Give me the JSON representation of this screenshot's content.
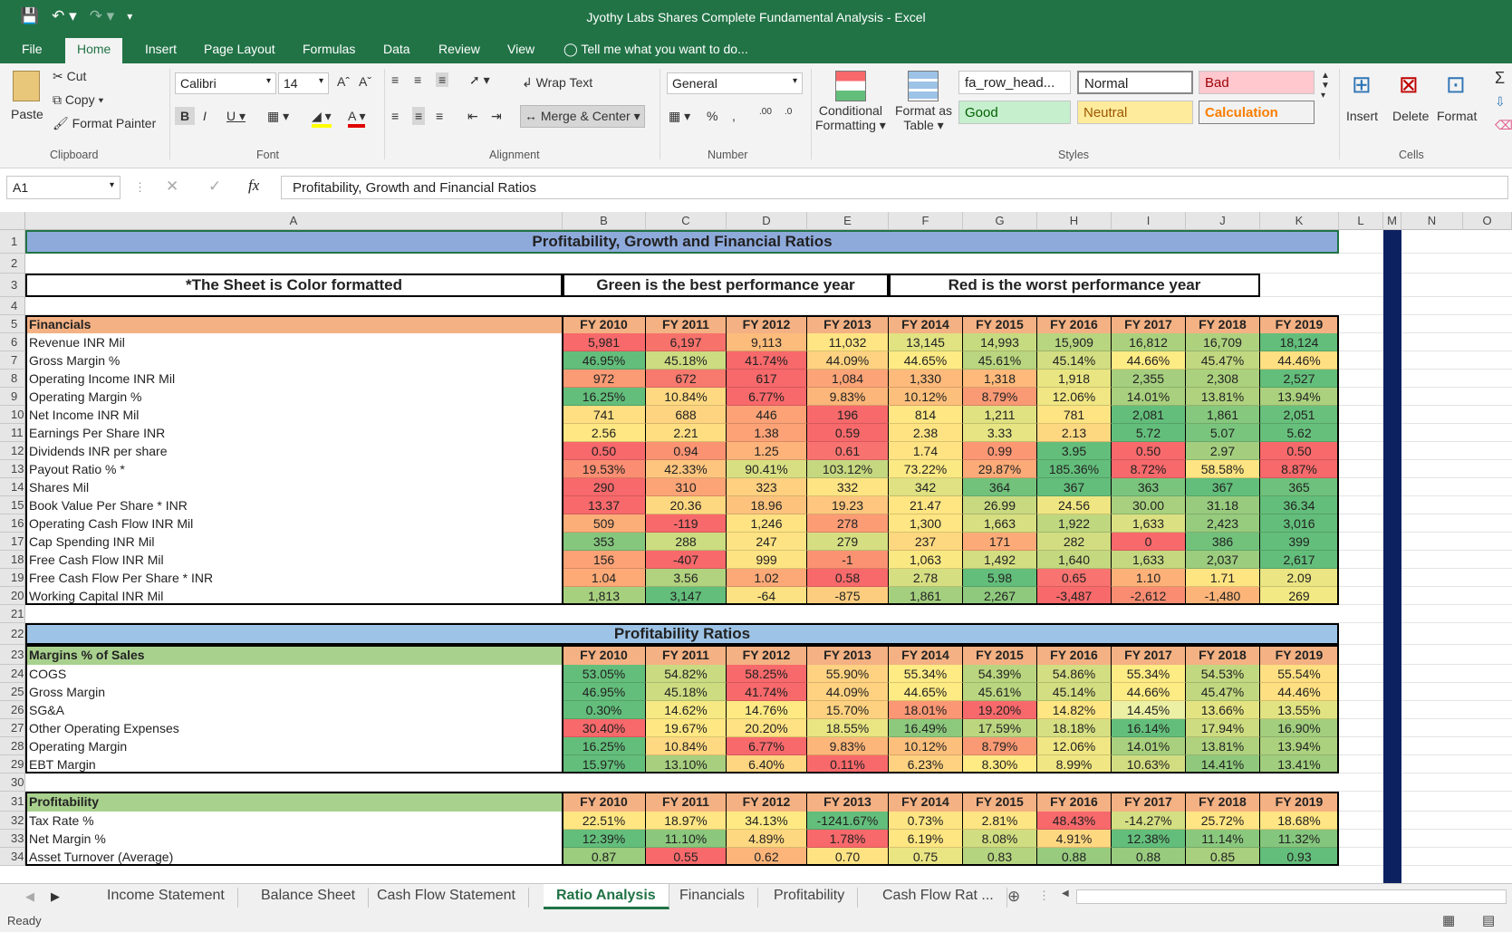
{
  "window": {
    "title": "Jyothy Labs Shares Complete Fundamental Analysis - Excel"
  },
  "menu": {
    "tabs": [
      "File",
      "Home",
      "Insert",
      "Page Layout",
      "Formulas",
      "Data",
      "Review",
      "View"
    ],
    "tell_me": "Tell me what you want to do..."
  },
  "ribbon": {
    "clipboard": {
      "paste": "Paste",
      "cut": "Cut",
      "copy": "Copy",
      "format_painter": "Format Painter",
      "label": "Clipboard"
    },
    "font": {
      "name": "Calibri",
      "size": "14",
      "label": "Font"
    },
    "alignment": {
      "wrap": "Wrap Text",
      "merge": "Merge & Center",
      "label": "Alignment"
    },
    "number": {
      "format": "General",
      "label": "Number"
    },
    "styles": {
      "cond1": "Conditional",
      "cond2": "Formatting",
      "fat1": "Format as",
      "fat2": "Table",
      "s1": "fa_row_head...",
      "s2": "Normal",
      "s3": "Bad",
      "s4": "Good",
      "s5": "Neutral",
      "s6": "Calculation",
      "label": "Styles"
    },
    "cells": {
      "insert": "Insert",
      "delete": "Delete",
      "format": "Format",
      "label": "Cells"
    }
  },
  "formula_bar": {
    "name_box": "A1",
    "formula": "Profitability, Growth and Financial Ratios",
    "fx": "fx"
  },
  "columns": [
    "A",
    "B",
    "C",
    "D",
    "E",
    "F",
    "G",
    "H",
    "I",
    "J",
    "K",
    "L",
    "M",
    "N",
    "O"
  ],
  "sheet": {
    "title": "Profitability, Growth and Financial Ratios",
    "notes": [
      "*The Sheet is Color formatted",
      "Green is the best performance year",
      "Red is the worst performance year"
    ],
    "years": [
      "FY 2010",
      "FY 2011",
      "FY 2012",
      "FY 2013",
      "FY 2014",
      "FY 2015",
      "FY 2016",
      "FY 2017",
      "FY 2018",
      "FY 2019"
    ],
    "financials": {
      "header": "Financials",
      "rows": [
        {
          "label": "Revenue INR Mil",
          "values": [
            "5,981",
            "6,197",
            "9,113",
            "11,032",
            "13,145",
            "14,993",
            "15,909",
            "16,812",
            "16,709",
            "18,124"
          ],
          "colors": [
            "#f8696b",
            "#f8726c",
            "#fcbc7b",
            "#ffe583",
            "#e1e282",
            "#c6da80",
            "#b8d57f",
            "#acd17e",
            "#aed17e",
            "#63be7b"
          ]
        },
        {
          "label": "Gross Margin %",
          "values": [
            "46.95%",
            "45.18%",
            "41.74%",
            "44.09%",
            "44.65%",
            "45.61%",
            "45.14%",
            "44.66%",
            "45.47%",
            "44.46%"
          ],
          "colors": [
            "#63be7b",
            "#cddc81",
            "#f8696b",
            "#fed280",
            "#ffeb84",
            "#b9d57f",
            "#d3de82",
            "#fdeb84",
            "#c2d880",
            "#fee082"
          ]
        },
        {
          "label": "Operating Income INR Mil",
          "values": [
            "972",
            "672",
            "617",
            "1,084",
            "1,330",
            "1,318",
            "1,918",
            "2,355",
            "2,308",
            "2,527"
          ],
          "colors": [
            "#fb9b75",
            "#f87a6e",
            "#f8696b",
            "#fca477",
            "#feba7b",
            "#feb97b",
            "#e9e583",
            "#a5cf7e",
            "#acd17e",
            "#63be7b"
          ]
        },
        {
          "label": "Operating Margin %",
          "values": [
            "16.25%",
            "10.84%",
            "6.77%",
            "9.83%",
            "10.12%",
            "8.79%",
            "12.06%",
            "14.01%",
            "13.81%",
            "13.94%"
          ],
          "colors": [
            "#63be7b",
            "#ffd982",
            "#f8696b",
            "#fdb679",
            "#fdc07c",
            "#fa9a75",
            "#f0e683",
            "#a9d07e",
            "#b0d27f",
            "#acd17e"
          ]
        },
        {
          "label": "Net Income INR Mil",
          "values": [
            "741",
            "688",
            "446",
            "196",
            "814",
            "1,211",
            "781",
            "2,081",
            "1,861",
            "2,051"
          ],
          "colors": [
            "#ffdf82",
            "#fed480",
            "#fca276",
            "#f8696b",
            "#ffe783",
            "#e0e282",
            "#ffe483",
            "#63be7b",
            "#86c87d",
            "#68c07c"
          ]
        },
        {
          "label": "Earnings Per Share INR",
          "values": [
            "2.56",
            "2.21",
            "1.38",
            "0.59",
            "2.38",
            "3.33",
            "2.13",
            "5.72",
            "5.07",
            "5.62"
          ],
          "colors": [
            "#ffe884",
            "#ffde82",
            "#fca276",
            "#f8696b",
            "#ffe383",
            "#e6e483",
            "#fed881",
            "#63be7b",
            "#7ac57d",
            "#67bf7c"
          ]
        },
        {
          "label": "Dividends INR per share",
          "values": [
            "0.50",
            "0.94",
            "1.25",
            "0.61",
            "1.74",
            "0.99",
            "3.95",
            "0.50",
            "2.97",
            "0.50"
          ],
          "colors": [
            "#f8696b",
            "#fb9373",
            "#fdb37a",
            "#f87370",
            "#ffe383",
            "#fc9774",
            "#63be7b",
            "#f8696b",
            "#a4ce7e",
            "#f8696b"
          ]
        },
        {
          "label": "Payout Ratio % *",
          "values": [
            "19.53%",
            "42.33%",
            "90.41%",
            "103.12%",
            "73.22%",
            "29.87%",
            "185.36%",
            "8.72%",
            "58.58%",
            "8.87%"
          ],
          "colors": [
            "#fb8e72",
            "#fdc57e",
            "#d8df82",
            "#c5d880",
            "#fbe983",
            "#fcab78",
            "#63be7b",
            "#f8696b",
            "#fee483",
            "#f8696b"
          ]
        },
        {
          "label": "Shares Mil",
          "values": [
            "290",
            "310",
            "323",
            "332",
            "342",
            "364",
            "367",
            "363",
            "367",
            "365"
          ],
          "colors": [
            "#f8696b",
            "#fca476",
            "#fed07f",
            "#ffe483",
            "#dfe182",
            "#72c27c",
            "#63be7b",
            "#7ac57d",
            "#63be7b",
            "#6ec17c"
          ]
        },
        {
          "label": "Book Value Per Share * INR",
          "values": [
            "13.37",
            "20.36",
            "18.96",
            "19.23",
            "21.47",
            "26.99",
            "24.56",
            "30.00",
            "31.18",
            "36.34"
          ],
          "colors": [
            "#f8696b",
            "#fed880",
            "#fdc37d",
            "#fec67e",
            "#ffe683",
            "#c8d980",
            "#efe683",
            "#a8d07e",
            "#98cb7e",
            "#63be7b"
          ]
        },
        {
          "label": "Operating Cash Flow INR Mil",
          "values": [
            "509",
            "-119",
            "1,246",
            "278",
            "1,300",
            "1,663",
            "1,922",
            "1,633",
            "2,423",
            "3,016"
          ],
          "colors": [
            "#fcae79",
            "#f8696b",
            "#ffe383",
            "#fc9c75",
            "#fde683",
            "#d8df82",
            "#bfd77f",
            "#dbe082",
            "#97cb7e",
            "#63be7b"
          ]
        },
        {
          "label": "Cap Spending INR Mil",
          "values": [
            "353",
            "288",
            "247",
            "279",
            "237",
            "171",
            "282",
            "0",
            "386",
            "399"
          ],
          "colors": [
            "#85c77d",
            "#ccdc81",
            "#fde383",
            "#d6de82",
            "#fed880",
            "#fcab78",
            "#d2dd81",
            "#f8696b",
            "#72c27c",
            "#63be7b"
          ]
        },
        {
          "label": "Free Cash Flow INR Mil",
          "values": [
            "156",
            "-407",
            "999",
            "-1",
            "1,063",
            "1,492",
            "1,640",
            "1,633",
            "2,037",
            "2,617"
          ],
          "colors": [
            "#fca276",
            "#f8696b",
            "#fee383",
            "#fb9373",
            "#fae983",
            "#d3de82",
            "#c4d880",
            "#c5d880",
            "#9ccc7e",
            "#63be7b"
          ]
        },
        {
          "label": "Free Cash Flow Per Share * INR",
          "values": [
            "1.04",
            "3.56",
            "1.02",
            "0.58",
            "2.78",
            "5.98",
            "0.65",
            "1.10",
            "1.71",
            "2.09"
          ],
          "colors": [
            "#fdaa77",
            "#b1d27f",
            "#fca977",
            "#f8696b",
            "#d6de82",
            "#63be7b",
            "#f97370",
            "#fdb179",
            "#ffe482",
            "#ebe583"
          ]
        },
        {
          "label": "Working Capital INR Mil",
          "values": [
            "1,813",
            "3,147",
            "-64",
            "-875",
            "1,861",
            "2,267",
            "-3,487",
            "-2,612",
            "-1,480",
            "269"
          ],
          "colors": [
            "#a7d07e",
            "#63be7b",
            "#fde283",
            "#fdcd7f",
            "#a4cf7e",
            "#8fc97d",
            "#f8696b",
            "#fa8c72",
            "#fcb479",
            "#f2e884"
          ]
        }
      ]
    },
    "prof_title": "Profitability Ratios",
    "margins": {
      "header": "Margins % of Sales",
      "rows": [
        {
          "label": "COGS",
          "values": [
            "53.05%",
            "54.82%",
            "58.25%",
            "55.90%",
            "55.34%",
            "54.39%",
            "54.86%",
            "55.34%",
            "54.53%",
            "55.54%"
          ],
          "colors": [
            "#63be7b",
            "#c9da81",
            "#f8696b",
            "#fed280",
            "#ffeb84",
            "#b9d57f",
            "#d3de82",
            "#fdeb84",
            "#c2d880",
            "#fee082"
          ]
        },
        {
          "label": "Gross Margin",
          "values": [
            "46.95%",
            "45.18%",
            "41.74%",
            "44.09%",
            "44.65%",
            "45.61%",
            "45.14%",
            "44.66%",
            "45.47%",
            "44.46%"
          ],
          "colors": [
            "#63be7b",
            "#cddc81",
            "#f8696b",
            "#fed280",
            "#ffeb84",
            "#b9d57f",
            "#d3de82",
            "#fdeb84",
            "#c2d880",
            "#fee082"
          ]
        },
        {
          "label": "SG&A",
          "values": [
            "0.30%",
            "14.62%",
            "14.76%",
            "15.70%",
            "18.01%",
            "19.20%",
            "14.82%",
            "14.45%",
            "13.66%",
            "13.55%"
          ],
          "colors": [
            "#63be7b",
            "#f6e984",
            "#fee983",
            "#fdd17f",
            "#fb9774",
            "#f8696b",
            "#fee683",
            "#ecf0a5",
            "#e3e382",
            "#e1e382"
          ]
        },
        {
          "label": "Other Operating Expenses",
          "values": [
            "30.40%",
            "19.67%",
            "20.20%",
            "18.55%",
            "16.49%",
            "17.59%",
            "18.18%",
            "16.14%",
            "17.94%",
            "16.90%"
          ],
          "colors": [
            "#f8696b",
            "#ffe883",
            "#ffe283",
            "#e9e583",
            "#8dc97d",
            "#bcd680",
            "#d6df82",
            "#63be7b",
            "#cedc81",
            "#a2ce7e"
          ]
        },
        {
          "label": "Operating Margin",
          "values": [
            "16.25%",
            "10.84%",
            "6.77%",
            "9.83%",
            "10.12%",
            "8.79%",
            "12.06%",
            "14.01%",
            "13.81%",
            "13.94%"
          ],
          "colors": [
            "#63be7b",
            "#ffd982",
            "#f8696b",
            "#fdb679",
            "#fdc07c",
            "#fa9a75",
            "#f0e683",
            "#a9d07e",
            "#b0d27f",
            "#acd17e"
          ]
        },
        {
          "label": "EBT Margin",
          "values": [
            "15.97%",
            "13.10%",
            "6.40%",
            "0.11%",
            "6.23%",
            "8.30%",
            "8.99%",
            "10.63%",
            "14.41%",
            "13.41%"
          ],
          "colors": [
            "#63be7b",
            "#a7cf7e",
            "#fed580",
            "#f8696b",
            "#fed280",
            "#ffeb84",
            "#f0e683",
            "#d2dd82",
            "#90c97d",
            "#a1ce7e"
          ]
        }
      ]
    },
    "profitability": {
      "header": "Profitability",
      "rows": [
        {
          "label": "Tax Rate %",
          "values": [
            "22.51%",
            "18.97%",
            "34.13%",
            "-1241.67%",
            "0.73%",
            "2.81%",
            "48.43%",
            "-14.27%",
            "25.72%",
            "18.68%"
          ],
          "colors": [
            "#ffe683",
            "#ffe583",
            "#ffe983",
            "#63be7b",
            "#fde583",
            "#fde583",
            "#f8696b",
            "#d4de82",
            "#ffe583",
            "#ffe583"
          ]
        },
        {
          "label": "Net Margin %",
          "values": [
            "12.39%",
            "11.10%",
            "4.89%",
            "1.78%",
            "6.19%",
            "8.08%",
            "4.91%",
            "12.38%",
            "11.14%",
            "11.32%"
          ],
          "colors": [
            "#63be7b",
            "#8bc87d",
            "#fed781",
            "#f8696b",
            "#fee683",
            "#d0dd81",
            "#fed781",
            "#63be7b",
            "#8ac87d",
            "#84c67d"
          ]
        },
        {
          "label": "Asset Turnover (Average)",
          "values": [
            "0.87",
            "0.55",
            "0.62",
            "0.70",
            "0.75",
            "0.83",
            "0.88",
            "0.88",
            "0.85",
            "0.93"
          ],
          "colors": [
            "#9ccc7e",
            "#f8696b",
            "#fcb479",
            "#ffe383",
            "#e9e583",
            "#b5d47f",
            "#98cb7e",
            "#98cb7e",
            "#a9d07e",
            "#63be7b"
          ]
        }
      ]
    }
  },
  "sheet_tabs": [
    "Income Statement",
    "Balance Sheet",
    "Cash Flow Statement",
    "Ratio Analysis",
    "Financials",
    "Profitability",
    "Cash Flow Rat ..."
  ],
  "status": {
    "text": "Ready"
  }
}
